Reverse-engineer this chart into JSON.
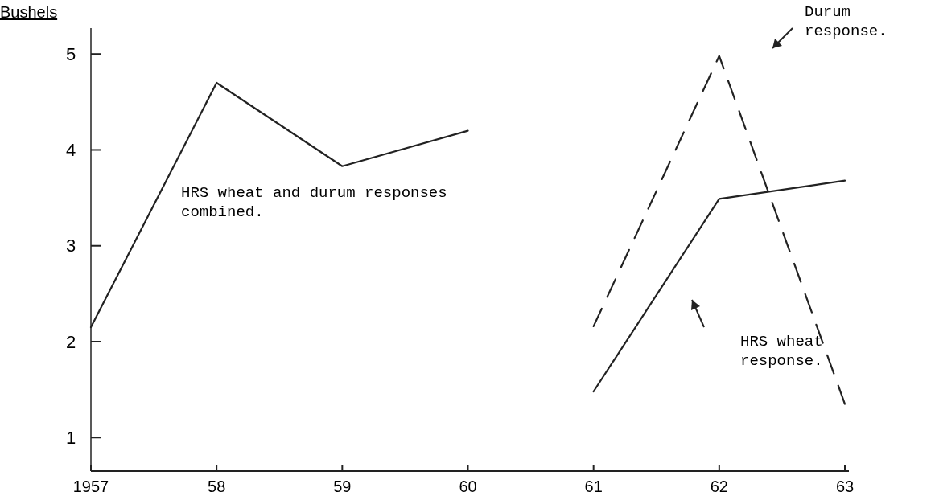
{
  "chart_data": {
    "type": "line",
    "ylabel": "Bushels",
    "categories": [
      "1957",
      "58",
      "59",
      "60",
      "61",
      "62",
      "63"
    ],
    "series": [
      {
        "color": "#222222",
        "values": [
          2.15,
          4.7,
          3.83,
          4.2,
          null,
          null,
          null
        ]
      },
      {
        "color": "#222222",
        "line_style": "dashed",
        "values": [
          null,
          null,
          null,
          null,
          2.16,
          4.98,
          1.35
        ]
      },
      {
        "color": "#222222",
        "values": [
          null,
          null,
          null,
          null,
          1.48,
          3.49,
          3.68
        ]
      }
    ],
    "ylim": [
      0.65,
      5.27
    ],
    "yticks": [
      1,
      2,
      3,
      4,
      5
    ],
    "grid": false,
    "legend": false,
    "marker": "none",
    "annotations": [
      "HRS wheat and durum responses combined.",
      "Durum response.",
      "HRS wheat response."
    ]
  }
}
